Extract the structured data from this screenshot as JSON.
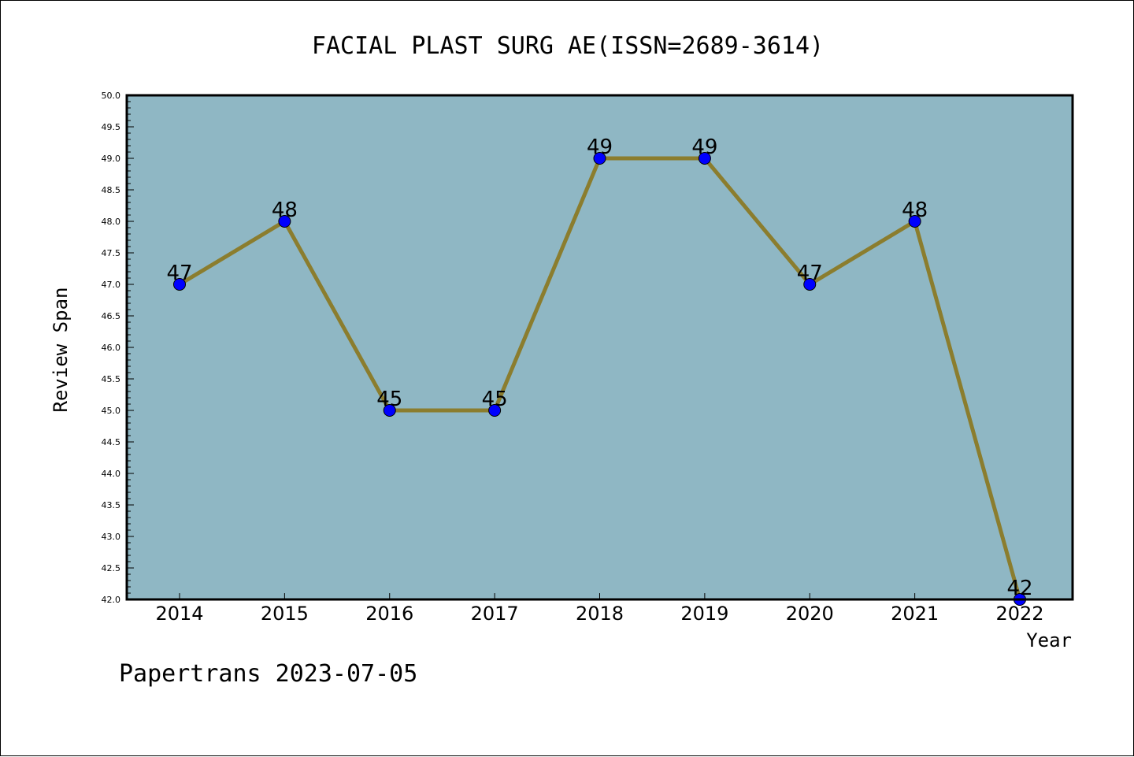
{
  "chart_data": {
    "type": "line",
    "title": "FACIAL PLAST SURG AE(ISSN=2689-3614)",
    "xlabel": "Year",
    "ylabel": "Review Span",
    "categories": [
      "2014",
      "2015",
      "2016",
      "2017",
      "2018",
      "2019",
      "2020",
      "2021",
      "2022"
    ],
    "values": [
      47,
      48,
      45,
      45,
      49,
      49,
      47,
      48,
      42
    ],
    "data_labels": [
      "47",
      "48",
      "45",
      "45",
      "49",
      "49",
      "47",
      "48",
      "42"
    ],
    "ylim": [
      42.0,
      50.0
    ],
    "yticks": [
      "42.0",
      "42.5",
      "43.0",
      "43.5",
      "44.0",
      "44.5",
      "45.0",
      "45.5",
      "46.0",
      "46.5",
      "47.0",
      "47.5",
      "48.0",
      "48.5",
      "49.0",
      "49.5",
      "50.0"
    ],
    "grid": false,
    "legend": "none",
    "colors": {
      "plot_background": "#8fb7c4",
      "line": "#8b7d2e",
      "marker": "#0000ff"
    }
  },
  "footer": "Papertrans 2023-07-05"
}
